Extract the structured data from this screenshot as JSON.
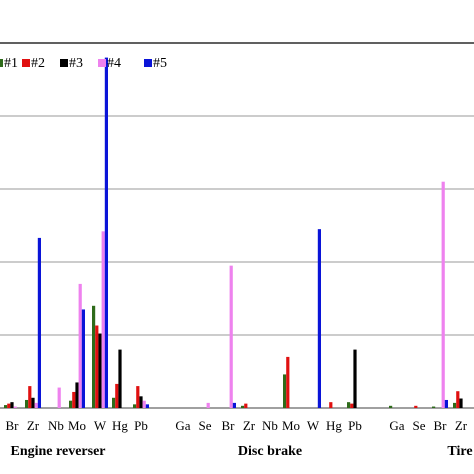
{
  "chart_data": {
    "type": "bar",
    "y_max": 5,
    "grid": true,
    "legend_position": "top-left",
    "groups": [
      {
        "label": "Engine reverser",
        "elements": [
          "Br",
          "Zr",
          "Nb",
          "Mo",
          "W",
          "Hg",
          "Pb"
        ]
      },
      {
        "label": "Disc brake",
        "elements": [
          "Ga",
          "Se",
          "Br",
          "Zr",
          "Nb",
          "Mo",
          "W",
          "Hg",
          "Pb"
        ]
      },
      {
        "label": "Tire",
        "elements": [
          "Ga",
          "Se",
          "Br",
          "Zr"
        ]
      }
    ],
    "categories": [
      "Br",
      "Zr",
      "Nb",
      "Mo",
      "W",
      "Hg",
      "Pb",
      "Ga",
      "Se",
      "Br",
      "Zr",
      "Nb",
      "Mo",
      "W",
      "Hg",
      "Pb",
      "Ga",
      "Se",
      "Br",
      "Zr"
    ],
    "series": [
      {
        "name": "#1",
        "color": "#2e6b1a",
        "values": [
          0.04,
          0.11,
          0,
          0.1,
          1.4,
          0.14,
          0.05,
          0,
          0,
          0,
          0.03,
          0,
          0.46,
          0,
          0,
          0.08,
          0.03,
          0,
          0.02,
          0.07
        ]
      },
      {
        "name": "#2",
        "color": "#e01010",
        "values": [
          0.06,
          0.3,
          0,
          0.22,
          1.13,
          0.33,
          0.3,
          0,
          0,
          0,
          0.06,
          0,
          0.7,
          0,
          0.08,
          0.06,
          0,
          0.03,
          0,
          0.23
        ]
      },
      {
        "name": "#3",
        "color": "#000000",
        "values": [
          0.08,
          0.14,
          0,
          0.35,
          1.02,
          0.8,
          0.16,
          0,
          0,
          0,
          0,
          0,
          0,
          0,
          0,
          0.8,
          0,
          0,
          0,
          0.13
        ]
      },
      {
        "name": "#4",
        "color": "#ee82ee",
        "values": [
          0.02,
          0.07,
          0.28,
          1.7,
          2.42,
          0,
          0.1,
          0,
          0.07,
          1.95,
          0,
          0,
          0,
          0,
          0,
          0,
          0,
          0,
          3.1,
          0
        ]
      },
      {
        "name": "#5",
        "color": "#0a14d8",
        "values": [
          0,
          2.33,
          0,
          1.35,
          4.8,
          0,
          0.05,
          0,
          0,
          0.07,
          0,
          0,
          0,
          2.45,
          0,
          0,
          0,
          0,
          0.11,
          0
        ]
      }
    ]
  }
}
